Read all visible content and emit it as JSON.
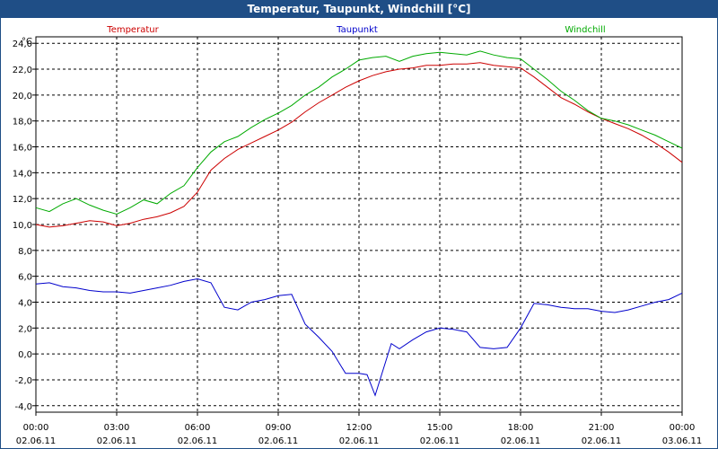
{
  "window": {
    "title": "Temperatur, Taupunkt, Windchill [°C]"
  },
  "chart_data": {
    "type": "line",
    "title": "Temperatur, Taupunkt, Windchill [°C]",
    "ylabel": "°C",
    "ylim": [
      -4.5,
      24.5
    ],
    "xlim_hours": [
      0,
      24
    ],
    "y_ticks": [
      "24,0",
      "22,0",
      "20,0",
      "18,0",
      "16,0",
      "14,0",
      "12,0",
      "10,0",
      "8,0",
      "6,0",
      "4,0",
      "2,0",
      "0,0",
      "-2,0",
      "-4,0"
    ],
    "y_tick_values": [
      24,
      22,
      20,
      18,
      16,
      14,
      12,
      10,
      8,
      6,
      4,
      2,
      0,
      -2,
      -4
    ],
    "x_ticks": [
      {
        "time": "00:00",
        "date": "02.06.11"
      },
      {
        "time": "03:00",
        "date": "02.06.11"
      },
      {
        "time": "06:00",
        "date": "02.06.11"
      },
      {
        "time": "09:00",
        "date": "02.06.11"
      },
      {
        "time": "12:00",
        "date": "02.06.11"
      },
      {
        "time": "15:00",
        "date": "02.06.11"
      },
      {
        "time": "18:00",
        "date": "02.06.11"
      },
      {
        "time": "21:00",
        "date": "02.06.11"
      },
      {
        "time": "00:00",
        "date": "03.06.11"
      }
    ],
    "grid": true,
    "series": [
      {
        "name": "Temperatur",
        "color": "#cc0000",
        "x": [
          0,
          0.5,
          1,
          1.5,
          2,
          2.5,
          3,
          3.5,
          4,
          4.5,
          5,
          5.5,
          6,
          6.5,
          7,
          7.5,
          8,
          8.5,
          9,
          9.5,
          10,
          10.5,
          11,
          11.5,
          12,
          12.5,
          13,
          13.5,
          14,
          14.5,
          15,
          15.5,
          16,
          16.5,
          17,
          17.5,
          18,
          18.5,
          19,
          19.5,
          20,
          20.5,
          21,
          21.5,
          22,
          22.5,
          23,
          23.5,
          24
        ],
        "values": [
          10.0,
          9.8,
          9.9,
          10.1,
          10.3,
          10.2,
          9.9,
          10.1,
          10.4,
          10.6,
          10.9,
          11.4,
          12.5,
          14.2,
          15.1,
          15.8,
          16.3,
          16.8,
          17.3,
          17.9,
          18.7,
          19.4,
          20.0,
          20.6,
          21.1,
          21.5,
          21.8,
          22.0,
          22.1,
          22.3,
          22.3,
          22.4,
          22.4,
          22.5,
          22.3,
          22.2,
          22.1,
          21.4,
          20.6,
          19.8,
          19.3,
          18.7,
          18.2,
          17.8,
          17.4,
          16.9,
          16.3,
          15.6,
          14.8
        ]
      },
      {
        "name": "Taupunkt",
        "color": "#0000cc",
        "x": [
          0,
          0.5,
          1,
          1.5,
          2,
          2.5,
          3,
          3.5,
          4,
          4.5,
          5,
          5.5,
          6,
          6.5,
          7,
          7.5,
          8,
          8.5,
          9,
          9.5,
          10,
          10.5,
          11,
          11.5,
          12,
          12.3,
          12.6,
          12.9,
          13.2,
          13.5,
          14,
          14.5,
          15,
          15.5,
          16,
          16.5,
          17,
          17.5,
          18,
          18.5,
          19,
          19.5,
          20,
          20.5,
          21,
          21.5,
          22,
          22.5,
          23,
          23.5,
          24
        ],
        "values": [
          5.4,
          5.5,
          5.2,
          5.1,
          4.9,
          4.8,
          4.8,
          4.7,
          4.9,
          5.1,
          5.3,
          5.6,
          5.8,
          5.5,
          3.6,
          3.4,
          4.0,
          4.2,
          4.5,
          4.6,
          2.3,
          1.3,
          0.2,
          -1.5,
          -1.5,
          -1.6,
          -3.2,
          -1.2,
          0.8,
          0.4,
          1.1,
          1.7,
          2.0,
          1.9,
          1.7,
          0.5,
          0.4,
          0.5,
          2.0,
          3.9,
          3.8,
          3.6,
          3.5,
          3.5,
          3.3,
          3.2,
          3.4,
          3.7,
          4.0,
          4.2,
          4.7
        ]
      },
      {
        "name": "Windchill",
        "color": "#00aa00",
        "x": [
          0,
          0.5,
          1,
          1.5,
          2,
          2.5,
          3,
          3.5,
          4,
          4.5,
          5,
          5.5,
          6,
          6.5,
          7,
          7.5,
          8,
          8.5,
          9,
          9.5,
          10,
          10.5,
          11,
          11.5,
          12,
          12.5,
          13,
          13.5,
          14,
          14.5,
          15,
          15.5,
          16,
          16.5,
          17,
          17.5,
          18,
          18.5,
          19,
          19.5,
          20,
          20.5,
          21,
          21.5,
          22,
          22.5,
          23,
          23.5,
          24
        ],
        "values": [
          11.3,
          11.0,
          11.6,
          12.0,
          11.5,
          11.1,
          10.8,
          11.3,
          11.9,
          11.6,
          12.4,
          13.0,
          14.4,
          15.6,
          16.4,
          16.8,
          17.5,
          18.1,
          18.6,
          19.2,
          20.0,
          20.6,
          21.4,
          22.0,
          22.7,
          22.9,
          23.0,
          22.6,
          23.0,
          23.2,
          23.3,
          23.2,
          23.1,
          23.4,
          23.1,
          22.9,
          22.8,
          22.0,
          21.2,
          20.3,
          19.6,
          18.8,
          18.2,
          18.0,
          17.7,
          17.3,
          16.9,
          16.4,
          15.9
        ]
      }
    ]
  }
}
